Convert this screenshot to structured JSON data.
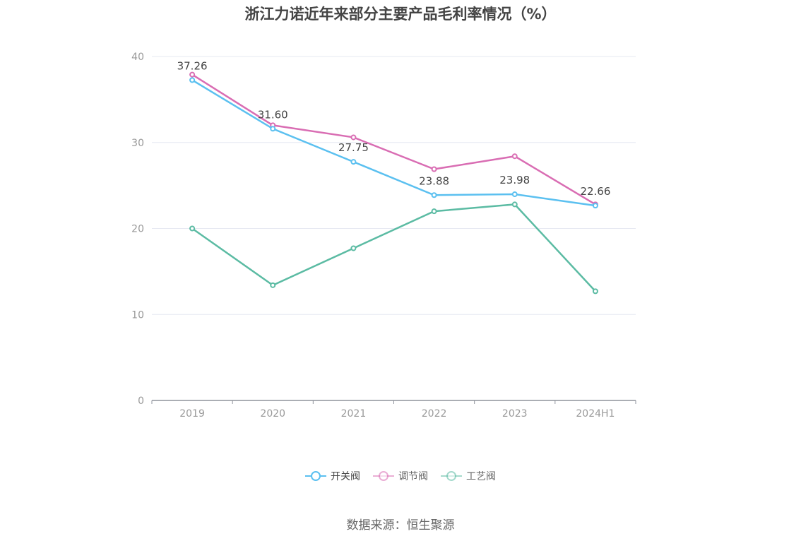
{
  "chart_data": {
    "type": "line",
    "title": "浙江力诺近年来部分主要产品毛利率情况（%）",
    "categories": [
      "2019",
      "2020",
      "2021",
      "2022",
      "2023",
      "2024H1"
    ],
    "ylim": [
      0,
      40
    ],
    "yticks": [
      0,
      10,
      20,
      30,
      40
    ],
    "grid": true,
    "legend_position": "bottom",
    "series": [
      {
        "name": "开关阀",
        "color": "#5bc0f0",
        "values": [
          37.26,
          31.6,
          27.75,
          23.88,
          23.98,
          22.66
        ],
        "labels": [
          "37.26",
          "31.60",
          "27.75",
          "23.88",
          "23.98",
          "22.66"
        ]
      },
      {
        "name": "调节阀",
        "color": "#d96db3",
        "values": [
          37.9,
          32.0,
          30.6,
          26.9,
          28.4,
          22.8
        ]
      },
      {
        "name": "工艺阀",
        "color": "#5bbba3",
        "values": [
          20.0,
          13.4,
          17.7,
          22.0,
          22.8,
          12.7
        ]
      }
    ]
  },
  "source": "数据来源：恒生聚源"
}
